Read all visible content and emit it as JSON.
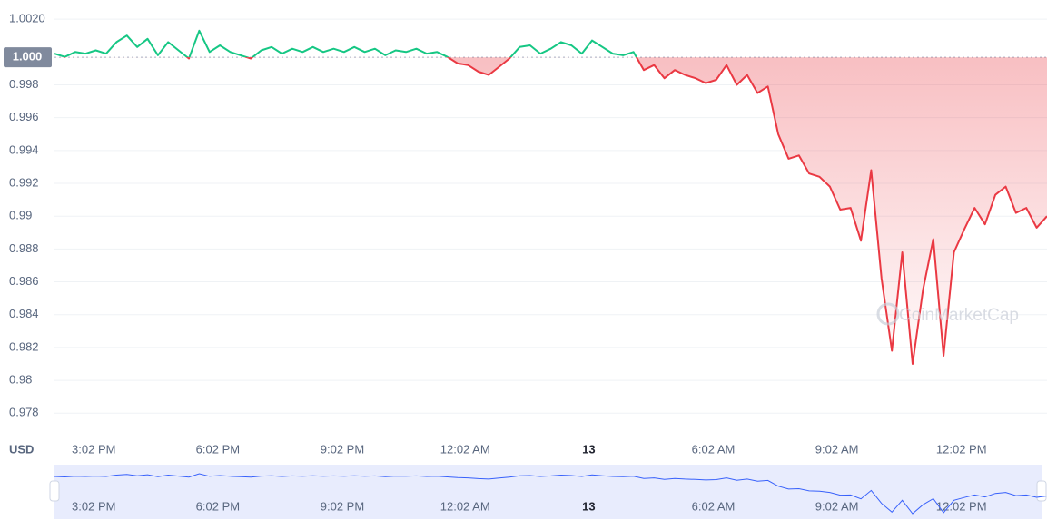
{
  "chart_data": {
    "type": "line",
    "unit_label": "USD",
    "watermark": "CoinMarketCap",
    "reference": {
      "value": 0.99968,
      "label": "1.000"
    },
    "ylim": [
      0.9768,
      1.003
    ],
    "yticks": [
      0.978,
      0.98,
      0.982,
      0.984,
      0.986,
      0.988,
      0.99,
      0.992,
      0.994,
      0.996,
      0.998,
      {
        "value": 1.002,
        "label": "1.0020"
      }
    ],
    "xlim": [
      0,
      24
    ],
    "xticks": [
      {
        "value": 0.95,
        "label": "3:02 PM"
      },
      {
        "value": 3.95,
        "label": "6:02 PM"
      },
      {
        "value": 6.96,
        "label": "9:02 PM"
      },
      {
        "value": 9.93,
        "label": "12:02 AM"
      },
      {
        "value": 12.92,
        "label": "13"
      },
      {
        "value": 15.93,
        "label": "6:02 AM"
      },
      {
        "value": 18.92,
        "label": "9:02 AM"
      },
      {
        "value": 21.93,
        "label": "12:02 PM"
      }
    ],
    "up_color": "#16c784",
    "down_color": "#ea3943",
    "navigator_color": "#3861fb",
    "x": [
      0,
      0.25,
      0.5,
      0.75,
      1,
      1.25,
      1.5,
      1.75,
      2,
      2.25,
      2.5,
      2.75,
      3,
      3.25,
      3.5,
      3.75,
      4,
      4.25,
      4.5,
      4.75,
      5,
      5.25,
      5.5,
      5.75,
      6,
      6.25,
      6.5,
      6.75,
      7,
      7.25,
      7.5,
      7.75,
      8,
      8.25,
      8.5,
      8.75,
      9,
      9.25,
      9.5,
      9.75,
      10,
      10.25,
      10.5,
      10.75,
      11,
      11.25,
      11.5,
      11.75,
      12,
      12.25,
      12.5,
      12.75,
      13,
      13.25,
      13.5,
      13.75,
      14,
      14.25,
      14.5,
      14.75,
      15,
      15.25,
      15.5,
      15.75,
      16,
      16.25,
      16.5,
      16.75,
      17,
      17.25,
      17.5,
      17.75,
      18,
      18.25,
      18.5,
      18.75,
      19,
      19.25,
      19.5,
      19.75,
      20,
      20.25,
      20.5,
      20.75,
      21,
      21.25,
      21.5,
      21.75,
      22,
      22.25,
      22.5,
      22.75,
      23,
      23.25,
      23.5,
      23.75,
      24
    ],
    "values": [
      0.9999,
      0.9997,
      1.0,
      0.9999,
      1.0001,
      0.9999,
      1.0006,
      1.001,
      1.0003,
      1.0008,
      0.9998,
      1.0006,
      1.0001,
      0.9996,
      1.0013,
      1.0,
      1.0004,
      1.0,
      0.9998,
      0.9996,
      1.0001,
      1.0003,
      0.9999,
      1.0002,
      1.0,
      1.0003,
      1.0,
      1.0002,
      1.0,
      1.0003,
      1.0,
      1.0002,
      0.9998,
      1.0001,
      1.0,
      1.0002,
      0.9999,
      1.0,
      0.9997,
      0.9993,
      0.9992,
      0.9988,
      0.9986,
      0.9991,
      0.9996,
      1.0003,
      1.0004,
      0.9999,
      1.0002,
      1.0006,
      1.0004,
      0.9999,
      1.0007,
      1.0003,
      0.9999,
      0.9998,
      1.0,
      0.9989,
      0.9992,
      0.9984,
      0.9989,
      0.9986,
      0.9984,
      0.9981,
      0.9983,
      0.9992,
      0.998,
      0.9986,
      0.9975,
      0.9979,
      0.995,
      0.9935,
      0.9937,
      0.9926,
      0.9924,
      0.9918,
      0.9904,
      0.9905,
      0.9885,
      0.9928,
      0.9862,
      0.9818,
      0.9878,
      0.981,
      0.9855,
      0.9886,
      0.9815,
      0.9878,
      0.9892,
      0.9905,
      0.9895,
      0.9913,
      0.9918,
      0.9902,
      0.9905,
      0.9893,
      0.99
    ]
  }
}
